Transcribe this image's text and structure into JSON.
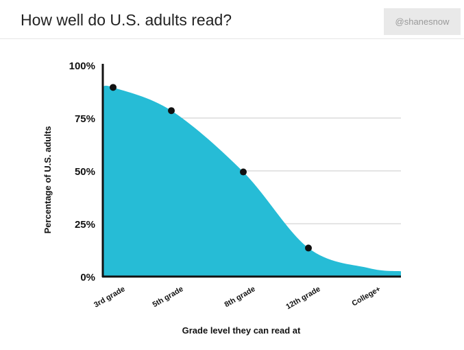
{
  "header": {
    "title": "How well do U.S. adults read?",
    "handle": "@shanesnow"
  },
  "chart_data": {
    "type": "area",
    "title": "How well do U.S. adults read?",
    "xlabel": "Grade level they can read at",
    "ylabel": "Percentage of U.S. adults",
    "categories": [
      "3rd grade",
      "5th grade",
      "8th grade",
      "12th grade",
      "College+"
    ],
    "yticks": [
      "0%",
      "25%",
      "50%",
      "75%",
      "100%"
    ],
    "ylim": [
      0,
      100
    ],
    "series": [
      {
        "values": [
          89.5,
          78.5,
          49.5,
          13.5,
          4
        ]
      }
    ],
    "curve_end_value": 2.5,
    "markers_on": [
      "3rd grade",
      "5th grade",
      "8th grade",
      "12th grade"
    ],
    "colors": {
      "fill": "#26bcd6",
      "marker": "#111111",
      "axis": "#111111",
      "grid": "#c8c8c8"
    },
    "grid": true,
    "legend": "none"
  }
}
